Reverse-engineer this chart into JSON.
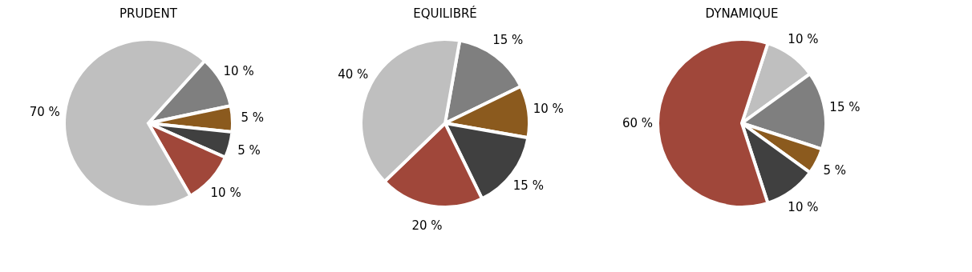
{
  "chart_data": [
    {
      "type": "pie",
      "title": "PRUDENT",
      "categories": [
        null,
        null,
        null,
        null,
        null
      ],
      "values": [
        10,
        5,
        5,
        10,
        70
      ],
      "colors": [
        "#7f7f7f",
        "#8b5a1e",
        "#404040",
        "#a0473a",
        "#bfbfbf"
      ],
      "value_labels": [
        "10 %",
        "5 %",
        "5 %",
        "10 %",
        "70 %"
      ]
    },
    {
      "type": "pie",
      "title": "EQUILIBRÉ",
      "categories": [
        null,
        null,
        null,
        null,
        null
      ],
      "values": [
        15,
        10,
        15,
        20,
        40
      ],
      "colors": [
        "#7f7f7f",
        "#8b5a1e",
        "#404040",
        "#a0473a",
        "#bfbfbf"
      ],
      "value_labels": [
        "15 %",
        "10 %",
        "15 %",
        "20 %",
        "40 %"
      ]
    },
    {
      "type": "pie",
      "title": "DYNAMIQUE",
      "categories": [
        null,
        null,
        null,
        null,
        null
      ],
      "values": [
        10,
        15,
        5,
        10,
        60
      ],
      "colors": [
        "#bfbfbf",
        "#7f7f7f",
        "#8b5a1e",
        "#404040",
        "#a0473a"
      ],
      "value_labels": [
        "10 %",
        "15 %",
        "5 %",
        "10 %",
        "60 %"
      ]
    }
  ]
}
